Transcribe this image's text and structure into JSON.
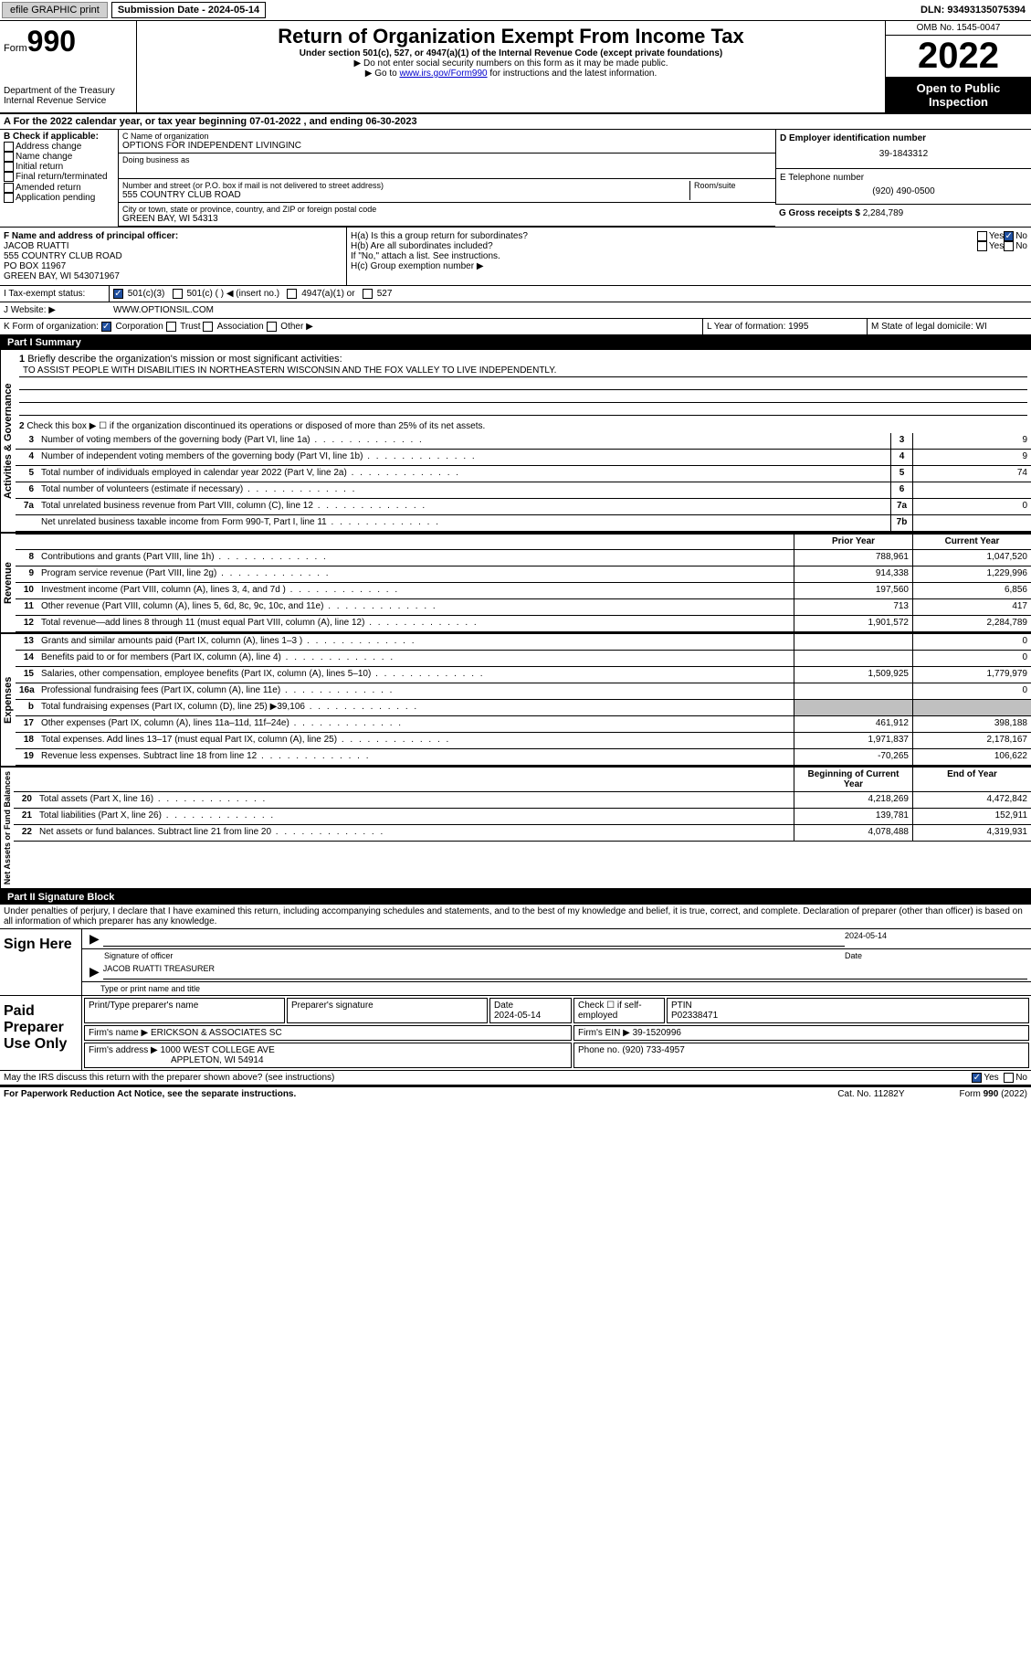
{
  "topbar": {
    "efile": "efile GRAPHIC print",
    "submission_label": "Submission Date - 2024-05-14",
    "dln": "DLN: 93493135075394"
  },
  "header": {
    "form_label": "Form",
    "form_num": "990",
    "dept": "Department of the Treasury\nInternal Revenue Service",
    "title": "Return of Organization Exempt From Income Tax",
    "subtitle": "Under section 501(c), 527, or 4947(a)(1) of the Internal Revenue Code (except private foundations)",
    "note1": "▶ Do not enter social security numbers on this form as it may be made public.",
    "note2_pre": "▶ Go to ",
    "note2_link": "www.irs.gov/Form990",
    "note2_post": " for instructions and the latest information.",
    "omb": "OMB No. 1545-0047",
    "year": "2022",
    "open": "Open to Public Inspection"
  },
  "line_a": "A For the 2022 calendar year, or tax year beginning 07-01-2022    , and ending 06-30-2023",
  "block_b": {
    "label": "B Check if applicable:",
    "opts": [
      "Address change",
      "Name change",
      "Initial return",
      "Final return/terminated",
      "Amended return",
      "Application pending"
    ]
  },
  "block_c": {
    "name_label": "C Name of organization",
    "name": "OPTIONS FOR INDEPENDENT LIVINGINC",
    "dba_label": "Doing business as",
    "addr_label": "Number and street (or P.O. box if mail is not delivered to street address)",
    "room_label": "Room/suite",
    "addr": "555 COUNTRY CLUB ROAD",
    "city_label": "City or town, state or province, country, and ZIP or foreign postal code",
    "city": "GREEN BAY, WI  54313"
  },
  "block_d": {
    "label": "D Employer identification number",
    "val": "39-1843312"
  },
  "block_e": {
    "label": "E Telephone number",
    "val": "(920) 490-0500"
  },
  "block_g": {
    "label": "G Gross receipts $",
    "val": "2,284,789"
  },
  "block_f": {
    "label": "F Name and address of principal officer:",
    "name": "JACOB RUATTI",
    "l1": "555 COUNTRY CLUB ROAD",
    "l2": "PO BOX 11967",
    "l3": "GREEN BAY, WI  543071967"
  },
  "block_h": {
    "ha": "H(a)  Is this a group return for subordinates?",
    "hb": "H(b)  Are all subordinates included?",
    "attach": "If \"No,\" attach a list. See instructions.",
    "hc": "H(c)  Group exemption number ▶"
  },
  "line_i": {
    "label": "I   Tax-exempt status:",
    "o1": "501(c)(3)",
    "o2": "501(c) (  ) ◀ (insert no.)",
    "o3": "4947(a)(1) or",
    "o4": "527"
  },
  "line_j": {
    "label": "J   Website: ▶",
    "val": "WWW.OPTIONSIL.COM"
  },
  "line_k": {
    "label": "K Form of organization:",
    "o1": "Corporation",
    "o2": "Trust",
    "o3": "Association",
    "o4": "Other ▶"
  },
  "line_l": {
    "label": "L Year of formation:",
    "val": "1995"
  },
  "line_m": {
    "label": "M State of legal domicile:",
    "val": "WI"
  },
  "part1": {
    "title": "Part I      Summary",
    "q1": "Briefly describe the organization's mission or most significant activities:",
    "mission": "TO ASSIST PEOPLE WITH DISABILITIES IN NORTHEASTERN WISCONSIN AND THE FOX VALLEY TO LIVE INDEPENDENTLY.",
    "q2": "Check this box ▶ ☐  if the organization discontinued its operations or disposed of more than 25% of its net assets.",
    "governance_label": "Activities & Governance",
    "revenue_label": "Revenue",
    "expenses_label": "Expenses",
    "netassets_label": "Net Assets or Fund Balances",
    "rows_simple": [
      {
        "n": "3",
        "d": "Number of voting members of the governing body (Part VI, line 1a)",
        "box": "3",
        "v": "9"
      },
      {
        "n": "4",
        "d": "Number of independent voting members of the governing body (Part VI, line 1b)",
        "box": "4",
        "v": "9"
      },
      {
        "n": "5",
        "d": "Total number of individuals employed in calendar year 2022 (Part V, line 2a)",
        "box": "5",
        "v": "74"
      },
      {
        "n": "6",
        "d": "Total number of volunteers (estimate if necessary)",
        "box": "6",
        "v": ""
      },
      {
        "n": "7a",
        "d": "Total unrelated business revenue from Part VIII, column (C), line 12",
        "box": "7a",
        "v": "0"
      },
      {
        "n": "",
        "d": "Net unrelated business taxable income from Form 990-T, Part I, line 11",
        "box": "7b",
        "v": ""
      }
    ],
    "col_prior": "Prior Year",
    "col_current": "Current Year",
    "rows_rev": [
      {
        "n": "8",
        "d": "Contributions and grants (Part VIII, line 1h)",
        "p": "788,961",
        "c": "1,047,520"
      },
      {
        "n": "9",
        "d": "Program service revenue (Part VIII, line 2g)",
        "p": "914,338",
        "c": "1,229,996"
      },
      {
        "n": "10",
        "d": "Investment income (Part VIII, column (A), lines 3, 4, and 7d )",
        "p": "197,560",
        "c": "6,856"
      },
      {
        "n": "11",
        "d": "Other revenue (Part VIII, column (A), lines 5, 6d, 8c, 9c, 10c, and 11e)",
        "p": "713",
        "c": "417"
      },
      {
        "n": "12",
        "d": "Total revenue—add lines 8 through 11 (must equal Part VIII, column (A), line 12)",
        "p": "1,901,572",
        "c": "2,284,789"
      }
    ],
    "rows_exp": [
      {
        "n": "13",
        "d": "Grants and similar amounts paid (Part IX, column (A), lines 1–3 )",
        "p": "",
        "c": "0"
      },
      {
        "n": "14",
        "d": "Benefits paid to or for members (Part IX, column (A), line 4)",
        "p": "",
        "c": "0"
      },
      {
        "n": "15",
        "d": "Salaries, other compensation, employee benefits (Part IX, column (A), lines 5–10)",
        "p": "1,509,925",
        "c": "1,779,979"
      },
      {
        "n": "16a",
        "d": "Professional fundraising fees (Part IX, column (A), line 11e)",
        "p": "",
        "c": "0"
      },
      {
        "n": "b",
        "d": "Total fundraising expenses (Part IX, column (D), line 25) ▶39,106",
        "p": "shaded",
        "c": "shaded"
      },
      {
        "n": "17",
        "d": "Other expenses (Part IX, column (A), lines 11a–11d, 11f–24e)",
        "p": "461,912",
        "c": "398,188"
      },
      {
        "n": "18",
        "d": "Total expenses. Add lines 13–17 (must equal Part IX, column (A), line 25)",
        "p": "1,971,837",
        "c": "2,178,167"
      },
      {
        "n": "19",
        "d": "Revenue less expenses. Subtract line 18 from line 12",
        "p": "-70,265",
        "c": "106,622"
      }
    ],
    "col_begin": "Beginning of Current Year",
    "col_end": "End of Year",
    "rows_net": [
      {
        "n": "20",
        "d": "Total assets (Part X, line 16)",
        "p": "4,218,269",
        "c": "4,472,842"
      },
      {
        "n": "21",
        "d": "Total liabilities (Part X, line 26)",
        "p": "139,781",
        "c": "152,911"
      },
      {
        "n": "22",
        "d": "Net assets or fund balances. Subtract line 21 from line 20",
        "p": "4,078,488",
        "c": "4,319,931"
      }
    ]
  },
  "part2": {
    "title": "Part II     Signature Block",
    "perjury": "Under penalties of perjury, I declare that I have examined this return, including accompanying schedules and statements, and to the best of my knowledge and belief, it is true, correct, and complete. Declaration of preparer (other than officer) is based on all information of which preparer has any knowledge.",
    "sign_here": "Sign Here",
    "sig_officer": "Signature of officer",
    "sig_date": "2024-05-14",
    "date_label": "Date",
    "officer_name": "JACOB RUATTI TREASURER",
    "type_name": "Type or print name and title",
    "paid_prep": "Paid Preparer Use Only",
    "prep_name_label": "Print/Type preparer's name",
    "prep_sig_label": "Preparer's signature",
    "prep_date_label": "Date",
    "prep_date": "2024-05-14",
    "check_if": "Check ☐ if self-employed",
    "ptin_label": "PTIN",
    "ptin": "P02338471",
    "firm_name_label": "Firm's name    ▶",
    "firm_name": "ERICKSON & ASSOCIATES SC",
    "firm_ein_label": "Firm's EIN ▶",
    "firm_ein": "39-1520996",
    "firm_addr_label": "Firm's address ▶",
    "firm_addr1": "1000 WEST COLLEGE AVE",
    "firm_addr2": "APPLETON, WI  54914",
    "phone_label": "Phone no.",
    "phone": "(920) 733-4957",
    "may_irs": "May the IRS discuss this return with the preparer shown above? (see instructions)"
  },
  "footer": {
    "paperwork": "For Paperwork Reduction Act Notice, see the separate instructions.",
    "cat": "Cat. No. 11282Y",
    "form": "Form 990 (2022)"
  }
}
